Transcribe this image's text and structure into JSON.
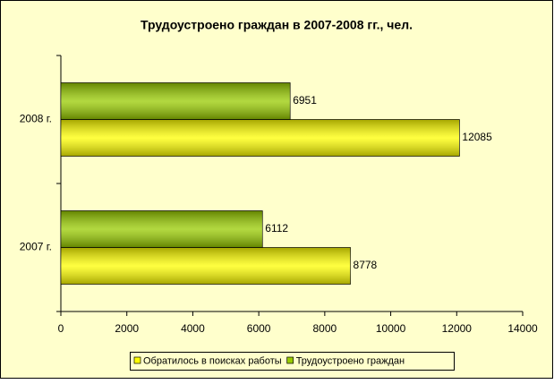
{
  "chart_data": {
    "type": "hbar",
    "title": "Трудоустроено граждан в 2007-2008 гг., чел.",
    "categories": [
      "2007 г.",
      "2008 г."
    ],
    "series": [
      {
        "name": "Обратилось в поисках работы",
        "color": "#ffff00",
        "values": [
          8778,
          12085
        ]
      },
      {
        "name": "Трудоустроено граждан",
        "color": "#99cc00",
        "values": [
          6112,
          6951
        ]
      }
    ],
    "xlim": [
      0,
      14000
    ],
    "xticks": [
      0,
      2000,
      4000,
      6000,
      8000,
      10000,
      12000,
      14000
    ],
    "grid": false,
    "legend": "bottom"
  }
}
